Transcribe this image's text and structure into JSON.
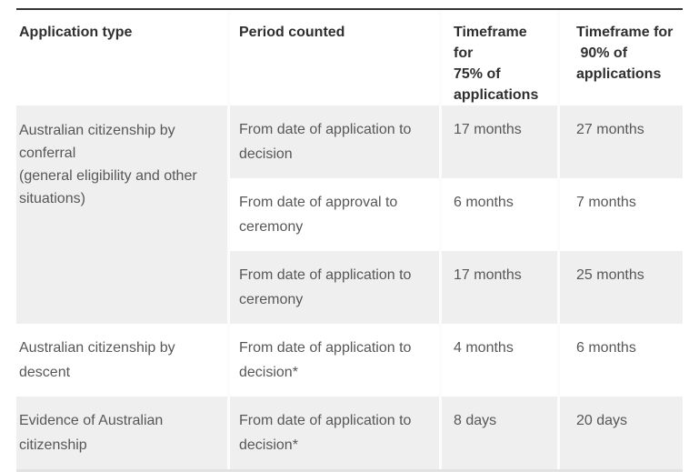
{
  "colors": {
    "stripe": "#efefef",
    "top_border": "#363636",
    "bottom_border": "#e2e2e2",
    "header_text": "#2f2f2f",
    "body_text": "#575757",
    "separator": "#fcfcfc"
  },
  "table": {
    "columns": [
      {
        "label": "Application type"
      },
      {
        "label": "Period counted"
      },
      {
        "label": "Timeframe for\n75% of\napplications"
      },
      {
        "label": "Timeframe for\n 90% of\napplications"
      }
    ],
    "groups": [
      {
        "application_type": "Australian citizenship by conferral\n(general eligibility and other situations)",
        "rows": [
          {
            "period": "From date of application to decision",
            "timeframe_75": "17 months",
            "timeframe_90": "27 months"
          },
          {
            "period": "From date of approval to ceremony",
            "timeframe_75": "6 months",
            "timeframe_90": "7 months"
          },
          {
            "period": "From date of application to ceremony",
            "timeframe_75": "17 months",
            "timeframe_90": "25 months"
          }
        ]
      },
      {
        "application_type": "Australian citizenship by descent",
        "rows": [
          {
            "period": "From date of application to decision*",
            "timeframe_75": "4 months",
            "timeframe_90": "6 months"
          }
        ]
      },
      {
        "application_type": "Evidence of Australian citizenship",
        "rows": [
          {
            "period": "From date of application to decision*",
            "timeframe_75": "8 days",
            "timeframe_90": "20 days"
          }
        ]
      }
    ]
  }
}
